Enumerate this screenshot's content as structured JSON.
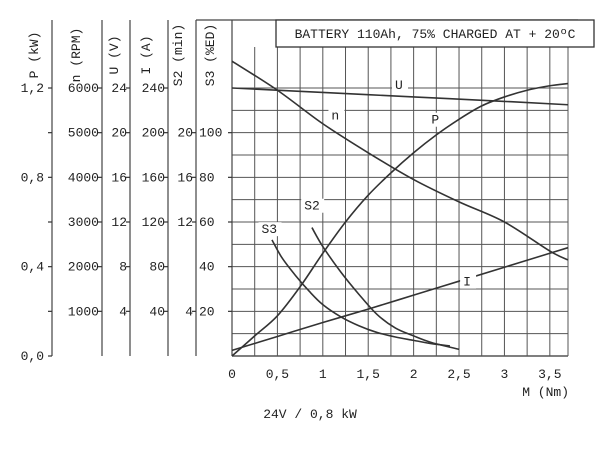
{
  "chart_data": {
    "type": "line",
    "title": "BATTERY 110Ah, 75% CHARGED AT + 20ºC",
    "subtitle": "24V / 0,8 kW",
    "xlabel": "M (Nm)",
    "xlim": [
      0,
      3.7
    ],
    "x_ticks": [
      "0",
      "0,5",
      "1",
      "1,5",
      "2",
      "2,5",
      "3",
      "3,5"
    ],
    "x_tick_values": [
      0,
      0.5,
      1,
      1.5,
      2,
      2.5,
      3,
      3.5
    ],
    "grid": true,
    "axes": [
      {
        "id": "P",
        "label": "P (kW)",
        "min": 0,
        "max": 1.2,
        "ticks": [
          {
            "label": "0,0",
            "value": 0
          },
          {
            "label": "0,4",
            "value": 0.4
          },
          {
            "label": "0,8",
            "value": 0.8
          },
          {
            "label": "1,2",
            "value": 1.2
          }
        ]
      },
      {
        "id": "n",
        "label": "n (RPM)",
        "min": 0,
        "max": 6000,
        "ticks": [
          {
            "label": "1000",
            "value": 1000
          },
          {
            "label": "2000",
            "value": 2000
          },
          {
            "label": "3000",
            "value": 3000
          },
          {
            "label": "4000",
            "value": 4000
          },
          {
            "label": "5000",
            "value": 5000
          },
          {
            "label": "6000",
            "value": 6000
          }
        ]
      },
      {
        "id": "U",
        "label": "U (V)",
        "min": 0,
        "max": 24,
        "ticks": [
          {
            "label": "4",
            "value": 4
          },
          {
            "label": "8",
            "value": 8
          },
          {
            "label": "12",
            "value": 12
          },
          {
            "label": "16",
            "value": 16
          },
          {
            "label": "20",
            "value": 20
          },
          {
            "label": "24",
            "value": 24
          }
        ]
      },
      {
        "id": "I",
        "label": "I (A)",
        "min": 0,
        "max": 240,
        "ticks": [
          {
            "label": "40",
            "value": 40
          },
          {
            "label": "80",
            "value": 80
          },
          {
            "label": "120",
            "value": 120
          },
          {
            "label": "160",
            "value": 160
          },
          {
            "label": "200",
            "value": 200
          },
          {
            "label": "240",
            "value": 240
          }
        ]
      },
      {
        "id": "S2",
        "label": "S2 (min)",
        "min": 0,
        "max": 24,
        "ticks": [
          {
            "label": "4",
            "value": 4
          },
          {
            "label": "12",
            "value": 12
          },
          {
            "label": "16",
            "value": 16
          },
          {
            "label": "20",
            "value": 20
          }
        ]
      },
      {
        "id": "S3",
        "label": "S3 (%ED)",
        "min": 0,
        "max": 120,
        "ticks": [
          {
            "label": "20",
            "value": 20
          },
          {
            "label": "40",
            "value": 40
          },
          {
            "label": "60",
            "value": 60
          },
          {
            "label": "80",
            "value": 80
          },
          {
            "label": "100",
            "value": 100
          }
        ]
      }
    ],
    "series": [
      {
        "name": "U",
        "axis": "U",
        "label_at": [
          1.85,
          23.9
        ],
        "x": [
          0,
          1,
          2,
          3,
          3.7
        ],
        "y": [
          24,
          23.6,
          23.2,
          22.8,
          22.5
        ]
      },
      {
        "name": "n",
        "axis": "n",
        "label_at": [
          1.15,
          5300
        ],
        "x": [
          0,
          0.5,
          1,
          1.5,
          2,
          2.5,
          3,
          3.5,
          3.7
        ],
        "y": [
          6600,
          5950,
          5200,
          4550,
          3950,
          3450,
          3000,
          2350,
          2150
        ]
      },
      {
        "name": "P",
        "axis": "P",
        "label_at": [
          2.25,
          1.04
        ],
        "x": [
          0,
          0.25,
          0.5,
          0.75,
          1,
          1.25,
          1.5,
          1.75,
          2,
          2.25,
          2.5,
          2.75,
          3,
          3.25,
          3.5,
          3.7
        ],
        "y": [
          0,
          0.09,
          0.18,
          0.31,
          0.46,
          0.6,
          0.72,
          0.82,
          0.91,
          0.99,
          1.06,
          1.12,
          1.16,
          1.19,
          1.21,
          1.22
        ]
      },
      {
        "name": "I",
        "axis": "I",
        "label_at": [
          2.6,
          63
        ],
        "x": [
          0,
          0.5,
          1,
          1.5,
          2,
          2.5,
          3,
          3.5,
          3.7
        ],
        "y": [
          5,
          17.5,
          30,
          42,
          54.5,
          67,
          79.5,
          92,
          97
        ]
      },
      {
        "name": "S2",
        "axis": "S2",
        "label_at": [
          0.85,
          13.1
        ],
        "x": [
          0.88,
          1,
          1.2,
          1.4,
          1.6,
          1.8,
          2,
          2.2,
          2.5
        ],
        "y": [
          11.5,
          9.8,
          7.5,
          5.5,
          3.7,
          2.5,
          1.8,
          1.2,
          0.6
        ]
      },
      {
        "name": "S3",
        "axis": "S3",
        "label_at": [
          0.38,
          55
        ],
        "x": [
          0.44,
          0.55,
          0.7,
          0.85,
          1,
          1.2,
          1.4,
          1.6,
          1.8,
          2,
          2.2,
          2.4
        ],
        "y": [
          52,
          44,
          36,
          29,
          23,
          17.5,
          13.5,
          10.5,
          8.5,
          7,
          5.5,
          4.5
        ]
      }
    ]
  }
}
